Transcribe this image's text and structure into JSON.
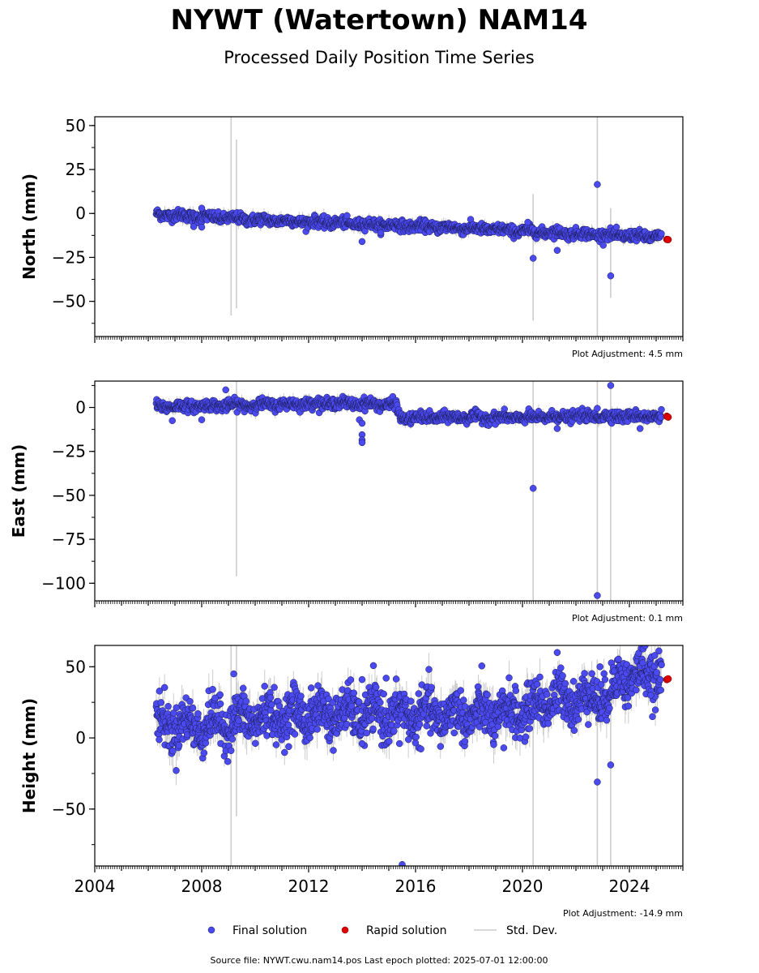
{
  "title": "NYWT (Watertown) NAM14",
  "subtitle": "Processed Daily Position Time Series",
  "footer": "Source file: NYWT.cwu.nam14.pos  Last epoch plotted: 2025-07-01 12:00:00",
  "colors": {
    "final": "#4a4af0",
    "final_edge": "#1a1a50",
    "rapid": "#e00000",
    "stddev": "#cccccc",
    "axis": "#000000"
  },
  "chart_data": [
    {
      "type": "scatter",
      "component": "north",
      "ylabel": "North (mm)",
      "xlim": [
        2004.0,
        2026.0
      ],
      "ylim": [
        -70,
        55
      ],
      "yticks": [
        50,
        25,
        0,
        -25,
        -50
      ],
      "ytick_labels": [
        "50",
        "25",
        "0",
        "−25",
        "−50"
      ],
      "annotation": "Plot Adjustment: 4.5 mm",
      "trend": [
        [
          2006.3,
          -0.5
        ],
        [
          2010.0,
          -3.5
        ],
        [
          2014.0,
          -6.0
        ],
        [
          2018.0,
          -8.5
        ],
        [
          2022.0,
          -11.5
        ],
        [
          2025.2,
          -13.5
        ]
      ],
      "noise": 1.5,
      "outliers": [
        [
          2007.7,
          -7.5
        ],
        [
          2008.0,
          -7.8
        ],
        [
          2008.0,
          3.0
        ],
        [
          2014.0,
          -16.0
        ],
        [
          2020.4,
          -25.5
        ],
        [
          2021.3,
          -21.0
        ],
        [
          2022.8,
          16.5
        ],
        [
          2023.3,
          -35.5
        ],
        [
          2014.7,
          -11.0
        ],
        [
          2020.2,
          -5.0
        ]
      ],
      "stddev_bars": [
        [
          2009.1,
          -58,
          55
        ],
        [
          2009.3,
          -54,
          42
        ],
        [
          2020.4,
          -61,
          11
        ],
        [
          2022.8,
          -70,
          55
        ],
        [
          2023.3,
          -48,
          3
        ]
      ],
      "rapid": [
        [
          2025.4,
          -14.8
        ],
        [
          2025.45,
          -14.9
        ]
      ]
    },
    {
      "type": "scatter",
      "component": "east",
      "ylabel": "East (mm)",
      "xlim": [
        2004.0,
        2026.0
      ],
      "ylim": [
        -110,
        15
      ],
      "yticks": [
        0,
        -25,
        -50,
        -75,
        -100
      ],
      "ytick_labels": [
        "0",
        "−25",
        "−50",
        "−75",
        "−100"
      ],
      "annotation": "Plot Adjustment: 0.1 mm",
      "trend": [
        [
          2006.3,
          0.5
        ],
        [
          2010.0,
          1.5
        ],
        [
          2013.0,
          2.5
        ],
        [
          2015.3,
          1.5
        ],
        [
          2015.4,
          -6.0
        ],
        [
          2018.0,
          -5.5
        ],
        [
          2020.0,
          -6.0
        ],
        [
          2022.0,
          -5.0
        ],
        [
          2025.2,
          -5.0
        ]
      ],
      "noise": 1.5,
      "outliers": [
        [
          2006.9,
          -7.5
        ],
        [
          2008.0,
          -7.0
        ],
        [
          2008.9,
          10.0
        ],
        [
          2013.9,
          -7.0
        ],
        [
          2014.0,
          -9.0
        ],
        [
          2014.0,
          -15.5
        ],
        [
          2014.0,
          -18.5
        ],
        [
          2014.0,
          -20.0
        ],
        [
          2020.4,
          -46.0
        ],
        [
          2021.3,
          -12.0
        ],
        [
          2022.8,
          -107.0
        ],
        [
          2022.8,
          -0.5
        ],
        [
          2023.3,
          12.5
        ],
        [
          2024.4,
          -12.0
        ]
      ],
      "stddev_bars": [
        [
          2009.3,
          -96,
          15
        ],
        [
          2020.4,
          -110,
          15
        ],
        [
          2022.8,
          -110,
          15
        ],
        [
          2023.3,
          -110,
          15
        ]
      ],
      "rapid": [
        [
          2025.4,
          -5.0
        ],
        [
          2025.45,
          -5.5
        ]
      ]
    },
    {
      "type": "scatter",
      "component": "height",
      "ylabel": "Height (mm)",
      "xlim": [
        2004.0,
        2026.0
      ],
      "ylim": [
        -90,
        65
      ],
      "yticks": [
        50,
        0,
        -50
      ],
      "ytick_labels": [
        "50",
        "0",
        "−50"
      ],
      "xticks": [
        2004,
        2008,
        2012,
        2016,
        2020,
        2024
      ],
      "xtick_labels": [
        "2004",
        "2008",
        "2012",
        "2016",
        "2020",
        "2024"
      ],
      "annotation": "Plot Adjustment: -14.9 mm",
      "trend": [
        [
          2006.3,
          10.0
        ],
        [
          2008.0,
          8.0
        ],
        [
          2010.0,
          14.0
        ],
        [
          2012.0,
          17.0
        ],
        [
          2016.0,
          16.0
        ],
        [
          2019.0,
          16.0
        ],
        [
          2020.3,
          20.0
        ],
        [
          2021.0,
          27.0
        ],
        [
          2022.5,
          28.0
        ],
        [
          2023.3,
          30.0
        ],
        [
          2023.6,
          42.0
        ],
        [
          2025.2,
          45.0
        ]
      ],
      "noise": 8.0,
      "outliers": [
        [
          2009.2,
          45.0
        ],
        [
          2008.5,
          28.0
        ],
        [
          2014.0,
          41.0
        ],
        [
          2014.0,
          -4.0
        ],
        [
          2014.9,
          42.0
        ],
        [
          2015.4,
          -4.0
        ],
        [
          2015.5,
          -89.0
        ],
        [
          2019.3,
          -7.0
        ],
        [
          2021.3,
          60.0
        ],
        [
          2022.8,
          -31.0
        ],
        [
          2022.9,
          50.0
        ],
        [
          2023.3,
          -19.0
        ],
        [
          2024.8,
          30.0
        ]
      ],
      "stddev_bars": [
        [
          2009.1,
          -90,
          65
        ],
        [
          2009.3,
          -55,
          65
        ],
        [
          2020.4,
          -90,
          45
        ],
        [
          2022.8,
          -90,
          55
        ],
        [
          2023.3,
          -90,
          40
        ]
      ],
      "rapid": [
        [
          2025.4,
          41.0
        ],
        [
          2025.45,
          41.5
        ]
      ]
    }
  ],
  "legend": {
    "placement": "bottom-center",
    "entries": [
      {
        "label": "Final solution",
        "kind": "final"
      },
      {
        "label": "Rapid solution",
        "kind": "rapid"
      },
      {
        "label": "Std. Dev.",
        "kind": "stddev"
      }
    ]
  }
}
